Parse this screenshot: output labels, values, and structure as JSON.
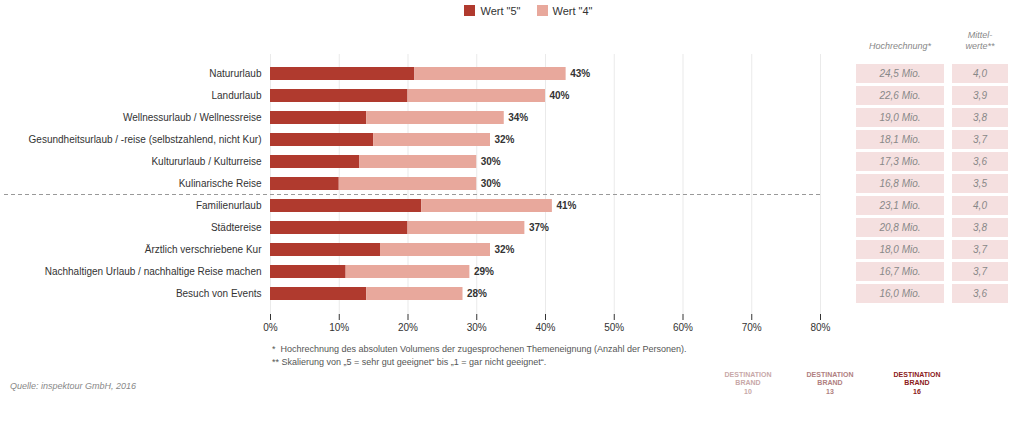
{
  "chart_data": {
    "type": "bar",
    "orientation": "horizontal",
    "stacked": true,
    "categories": [
      "Natururlaub",
      "Landurlaub",
      "Wellnessurlaub / Wellnessreise",
      "Gesundheitsurlaub / -reise (selbstzahlend, nicht Kur)",
      "Kultururlaub / Kulturreise",
      "Kulinarische Reise",
      "Familienurlaub",
      "Städtereise",
      "Ärztlich verschriebene Kur",
      "Nachhaltigen Urlaub / nachhaltige Reise machen",
      "Besuch von Events"
    ],
    "series": [
      {
        "name": "Wert \"5\"",
        "color": "#b03a2e",
        "values": [
          21,
          20,
          14,
          15,
          13,
          10,
          22,
          20,
          16,
          11,
          14
        ]
      },
      {
        "name": "Wert \"4\"",
        "color": "#e8a89c",
        "values": [
          22,
          20,
          20,
          17,
          17,
          20,
          19,
          17,
          16,
          18,
          14
        ]
      }
    ],
    "totals": [
      43,
      40,
      34,
      32,
      30,
      30,
      41,
      37,
      32,
      29,
      28
    ],
    "total_labels": [
      "43%",
      "40%",
      "34%",
      "32%",
      "30%",
      "30%",
      "41%",
      "37%",
      "32%",
      "29%",
      "28%"
    ],
    "xlim": [
      0,
      80
    ],
    "xticks": [
      {
        "value": 0,
        "label": "0%"
      },
      {
        "value": 10,
        "label": "10%"
      },
      {
        "value": 20,
        "label": "20%"
      },
      {
        "value": 30,
        "label": "30%"
      },
      {
        "value": 40,
        "label": "40%"
      },
      {
        "value": 50,
        "label": "50%"
      },
      {
        "value": 60,
        "label": "60%"
      },
      {
        "value": 70,
        "label": "70%"
      },
      {
        "value": 80,
        "label": "80%"
      }
    ],
    "grid": true,
    "legend": "top",
    "separator_after": "Kulinarische Reise",
    "table": {
      "color": "#f5e0e0",
      "columns": [
        {
          "header": "Hochrechnung*",
          "values": [
            "24,5 Mio.",
            "22,6 Mio.",
            "19,0 Mio.",
            "18,1 Mio.",
            "17,3 Mio.",
            "16,8 Mio.",
            "23,1 Mio.",
            "20,8 Mio.",
            "18,0 Mio.",
            "16,7 Mio.",
            "16,0 Mio."
          ]
        },
        {
          "header": "Mittel-\nwerte**",
          "values": [
            "4,0",
            "3,9",
            "3,8",
            "3,7",
            "3,6",
            "3,5",
            "4,0",
            "3,8",
            "3,7",
            "3,7",
            "3,6"
          ]
        }
      ]
    },
    "footnotes": [
      "*  Hochrechnung des absoluten Volumens der zugesprochenen Themeneignung (Anzahl der Personen).",
      "** Skalierung von „5 = sehr gut geeignet“ bis „1 = gar nicht geeignet“."
    ],
    "source": "Quelle: inspektour GmbH, 2016",
    "logos": [
      {
        "text": "DESTINATION\nBRAND\n10",
        "color": "#c8a8a8"
      },
      {
        "text": "DESTINATION\nBRAND\n13",
        "color": "#b08080"
      },
      {
        "text": "DESTINATION\nBRAND\n16",
        "color": "#8b1a1a"
      }
    ]
  }
}
